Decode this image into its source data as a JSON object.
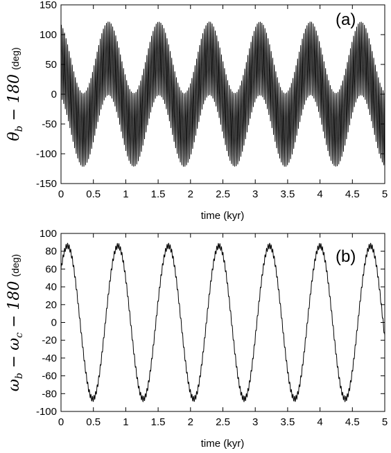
{
  "chart_data": [
    {
      "type": "line",
      "panel_label": "(a)",
      "xlabel": "time (kyr)",
      "ylabel": {
        "symbol": "θ",
        "subscript": "b",
        "rest": " − 180",
        "unit": "(deg)"
      },
      "xlim": [
        0,
        5
      ],
      "ylim": [
        -150,
        150
      ],
      "xticks": [
        0,
        0.5,
        1,
        1.5,
        2,
        2.5,
        3,
        3.5,
        4,
        4.5,
        5
      ],
      "xtick_labels": [
        "0",
        "0.5",
        "1",
        "1.5",
        "2",
        "2.5",
        "3",
        "3.5",
        "4",
        "4.5",
        "5"
      ],
      "yticks": [
        -150,
        -100,
        -50,
        0,
        50,
        100,
        150
      ],
      "ytick_labels": [
        "-150",
        "-100",
        "-50",
        "0",
        "50",
        "100",
        "150"
      ],
      "grid": false,
      "series": [
        {
          "color": "#000000",
          "signal": {
            "offset_deg": 0,
            "envelope_amplitude_deg": 60,
            "envelope_period_kyr": 0.78,
            "envelope_phase_kyr": 0.0,
            "fast_amplitude_deg": 62,
            "fast_period_kyr": 0.024
          }
        }
      ]
    },
    {
      "type": "line",
      "panel_label": "(b)",
      "xlabel": "time (kyr)",
      "ylabel": {
        "symbol": "ω",
        "subscript": "b",
        "rest": " − ",
        "symbol2": "ω",
        "subscript2": "c",
        "rest2": " − 180",
        "unit": "(deg)"
      },
      "xlim": [
        0,
        5
      ],
      "ylim": [
        -100,
        100
      ],
      "xticks": [
        0,
        0.5,
        1,
        1.5,
        2,
        2.5,
        3,
        3.5,
        4,
        4.5,
        5
      ],
      "xtick_labels": [
        "0",
        "0.5",
        "1",
        "1.5",
        "2",
        "2.5",
        "3",
        "3.5",
        "4",
        "4.5",
        "5"
      ],
      "yticks": [
        -100,
        -80,
        -60,
        -40,
        -20,
        0,
        20,
        40,
        60,
        80,
        100
      ],
      "ytick_labels": [
        "-100",
        "-80",
        "-60",
        "-40",
        "-20",
        "0",
        "20",
        "40",
        "60",
        "80",
        "100"
      ],
      "grid": false,
      "series": [
        {
          "color": "#000000",
          "signal": {
            "amplitude_deg": 86,
            "period_kyr": 0.78,
            "peak_time_kyr": 0.1,
            "ripple_amplitude_deg": 3,
            "ripple_period_kyr": 0.024
          }
        }
      ]
    }
  ]
}
